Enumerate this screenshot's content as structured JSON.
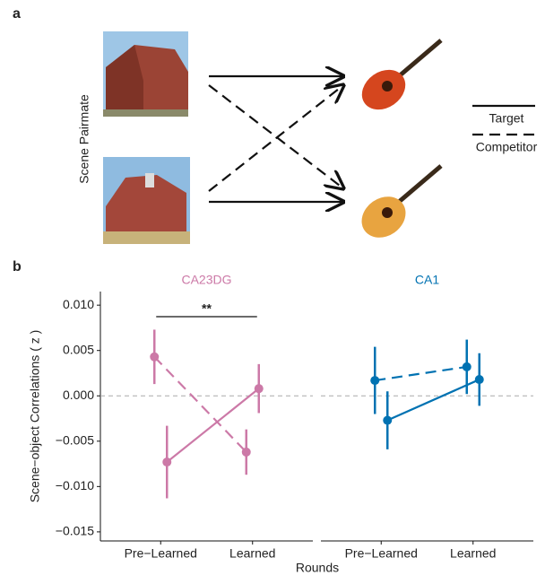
{
  "panel_labels": [
    "a",
    "b"
  ],
  "diagram": {
    "side_label": "Scene Pairmate",
    "legend": [
      {
        "label": "Target",
        "dash": false
      },
      {
        "label": "Competitor",
        "dash": true
      }
    ]
  },
  "chart_data": [
    {
      "type": "line",
      "title": "CA23DG",
      "color": "#cc79a7",
      "categories": [
        "Pre−Learned",
        "Learned"
      ],
      "series": [
        {
          "dash": true,
          "values": [
            0.0043,
            -0.0062
          ],
          "errors": [
            0.003,
            0.0025
          ]
        },
        {
          "dash": false,
          "values": [
            -0.0073,
            0.0008
          ],
          "errors": [
            0.004,
            0.0027
          ]
        }
      ],
      "ylim": [
        -0.016,
        0.0115
      ],
      "yticks": [
        {
          "value": 0.01,
          "label": "0.010"
        },
        {
          "value": 0.005,
          "label": "0.005"
        },
        {
          "value": 0,
          "label": "0.000"
        },
        {
          "value": -0.005,
          "label": "−0.005"
        },
        {
          "value": -0.01,
          "label": "−0.010"
        },
        {
          "value": -0.015,
          "label": "−0.015"
        }
      ],
      "hline": 0,
      "annotation": "**",
      "ylabel": "Scene−object Correlations ( z )",
      "xlabel": "Rounds"
    },
    {
      "type": "line",
      "title": "CA1",
      "color": "#0072b2",
      "categories": [
        "Pre−Learned",
        "Learned"
      ],
      "series": [
        {
          "dash": true,
          "values": [
            0.0017,
            0.0032
          ],
          "errors": [
            0.0037,
            0.003
          ]
        },
        {
          "dash": false,
          "values": [
            -0.0027,
            0.0018
          ],
          "errors": [
            0.0032,
            0.0029
          ]
        }
      ],
      "ylim": [
        -0.016,
        0.0115
      ],
      "hline": 0
    }
  ]
}
